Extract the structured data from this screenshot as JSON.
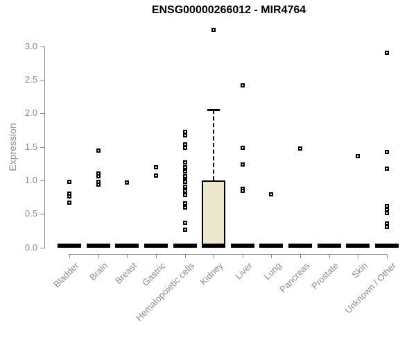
{
  "title": "ENSG00000266012 - MIR4764",
  "chart_data": {
    "type": "boxplot",
    "title": "ENSG00000266012 - MIR4764",
    "xlabel": "",
    "ylabel": "Expression",
    "ylim": [
      0.0,
      3.3
    ],
    "yticks": [
      0,
      0.5,
      1.0,
      1.5,
      2.0,
      2.5,
      3.0
    ],
    "ytick_labels": [
      "0.0",
      "0.5",
      "1.0",
      "1.5",
      "2.0",
      "2.5",
      "3.0"
    ],
    "grid": false,
    "legend": "none",
    "categories": [
      "Bladder",
      "Brain",
      "Breast",
      "Gastric",
      "Hematopoietic cells",
      "Kidney",
      "Liver",
      "Lung",
      "Pancreas",
      "Prostate",
      "Skin",
      "Unknown / Other"
    ],
    "boxes": [
      {
        "category": "Bladder",
        "q1": 0,
        "median": 0,
        "q3": 0,
        "whisker_low": 0,
        "whisker_high": 0,
        "points": [
          0.98,
          0.8,
          0.76,
          0.67
        ]
      },
      {
        "category": "Brain",
        "q1": 0,
        "median": 0,
        "q3": 0,
        "whisker_low": 0,
        "whisker_high": 0,
        "points": [
          1.45,
          1.1,
          1.06,
          0.98,
          0.94
        ]
      },
      {
        "category": "Breast",
        "q1": 0,
        "median": 0,
        "q3": 0,
        "whisker_low": 0,
        "whisker_high": 0,
        "points": [
          0.97
        ]
      },
      {
        "category": "Gastric",
        "q1": 0,
        "median": 0,
        "q3": 0,
        "whisker_low": 0,
        "whisker_high": 0,
        "points": [
          1.2,
          1.07
        ]
      },
      {
        "category": "Hematopoietic cells",
        "q1": 0,
        "median": 0,
        "q3": 0,
        "whisker_low": 0,
        "whisker_high": 0,
        "points": [
          1.72,
          1.67,
          1.54,
          1.49,
          1.27,
          1.2,
          1.13,
          1.06,
          1.0,
          0.98,
          0.91,
          0.85,
          0.78,
          0.66,
          0.6,
          0.37,
          0.27
        ]
      },
      {
        "category": "Kidney",
        "q1": 0,
        "median": 0,
        "q3": 1.0,
        "whisker_low": 0,
        "whisker_high": 2.06,
        "points": [
          3.25
        ]
      },
      {
        "category": "Liver",
        "q1": 0,
        "median": 0,
        "q3": 0,
        "whisker_low": 0,
        "whisker_high": 0,
        "points": [
          2.42,
          1.49,
          1.24,
          0.88,
          0.84
        ]
      },
      {
        "category": "Lung",
        "q1": 0,
        "median": 0,
        "q3": 0,
        "whisker_low": 0,
        "whisker_high": 0,
        "points": [
          0.79
        ]
      },
      {
        "category": "Pancreas",
        "q1": 0,
        "median": 0,
        "q3": 0,
        "whisker_low": 0,
        "whisker_high": 0,
        "points": [
          1.48
        ]
      },
      {
        "category": "Prostate",
        "q1": 0,
        "median": 0,
        "q3": 0,
        "whisker_low": 0,
        "whisker_high": 0,
        "points": []
      },
      {
        "category": "Skin",
        "q1": 0,
        "median": 0,
        "q3": 0,
        "whisker_low": 0,
        "whisker_high": 0,
        "points": [
          1.36
        ]
      },
      {
        "category": "Unknown / Other",
        "q1": 0,
        "median": 0,
        "q3": 0,
        "whisker_low": 0,
        "whisker_high": 0,
        "points": [
          2.9,
          1.42,
          1.18,
          0.62,
          0.57,
          0.51,
          0.36,
          0.31
        ]
      }
    ]
  },
  "styles": {
    "axis_color": "#888888",
    "axis_text_color": "#8a8a8a",
    "title_color": "#000000",
    "box_fill": "#ede8cd",
    "box_border": "#000000",
    "point_border": "#000000",
    "point_fill": "#ffffff"
  }
}
